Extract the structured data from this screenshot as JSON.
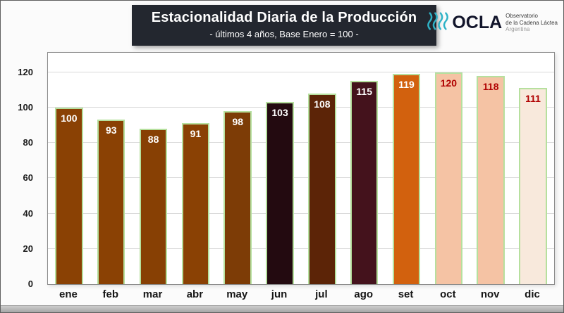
{
  "header": {
    "title": "Estacionalidad Diaria de la Producción",
    "subtitle": "- últimos 4 años, Base Enero = 100 -"
  },
  "logo": {
    "brand": "OCLA",
    "line1": "Observatorio",
    "line2": "de la Cadena Láctea",
    "line3": "Argentina",
    "icon_color": "#2fb3c7",
    "brand_color": "#12152b"
  },
  "chart_data": {
    "type": "bar",
    "title": "Estacionalidad Diaria de la Producción",
    "subtitle": "- últimos 4 años, Base Enero = 100 -",
    "categories": [
      "ene",
      "feb",
      "mar",
      "abr",
      "may",
      "jun",
      "jul",
      "ago",
      "set",
      "oct",
      "nov",
      "dic"
    ],
    "values": [
      100,
      93,
      88,
      91,
      98,
      103,
      108,
      115,
      119,
      120,
      118,
      111
    ],
    "bar_colors": [
      "#8a4104",
      "#8a4104",
      "#874004",
      "#8a4104",
      "#7d3c06",
      "#230a10",
      "#5c2407",
      "#44121c",
      "#d2610e",
      "#f5c3a4",
      "#f5c3a4",
      "#f8e9dc"
    ],
    "label_colors": [
      "#ffffff",
      "#ffffff",
      "#ffffff",
      "#ffffff",
      "#ffffff",
      "#ffffff",
      "#ffffff",
      "#ffffff",
      "#ffffff",
      "#b00000",
      "#b00000",
      "#b00000"
    ],
    "bar_border_color": "#b6e09e",
    "yticks": [
      0,
      20,
      40,
      60,
      80,
      100,
      120
    ],
    "ylim": [
      0,
      120
    ],
    "grid": true,
    "legend": "none"
  }
}
